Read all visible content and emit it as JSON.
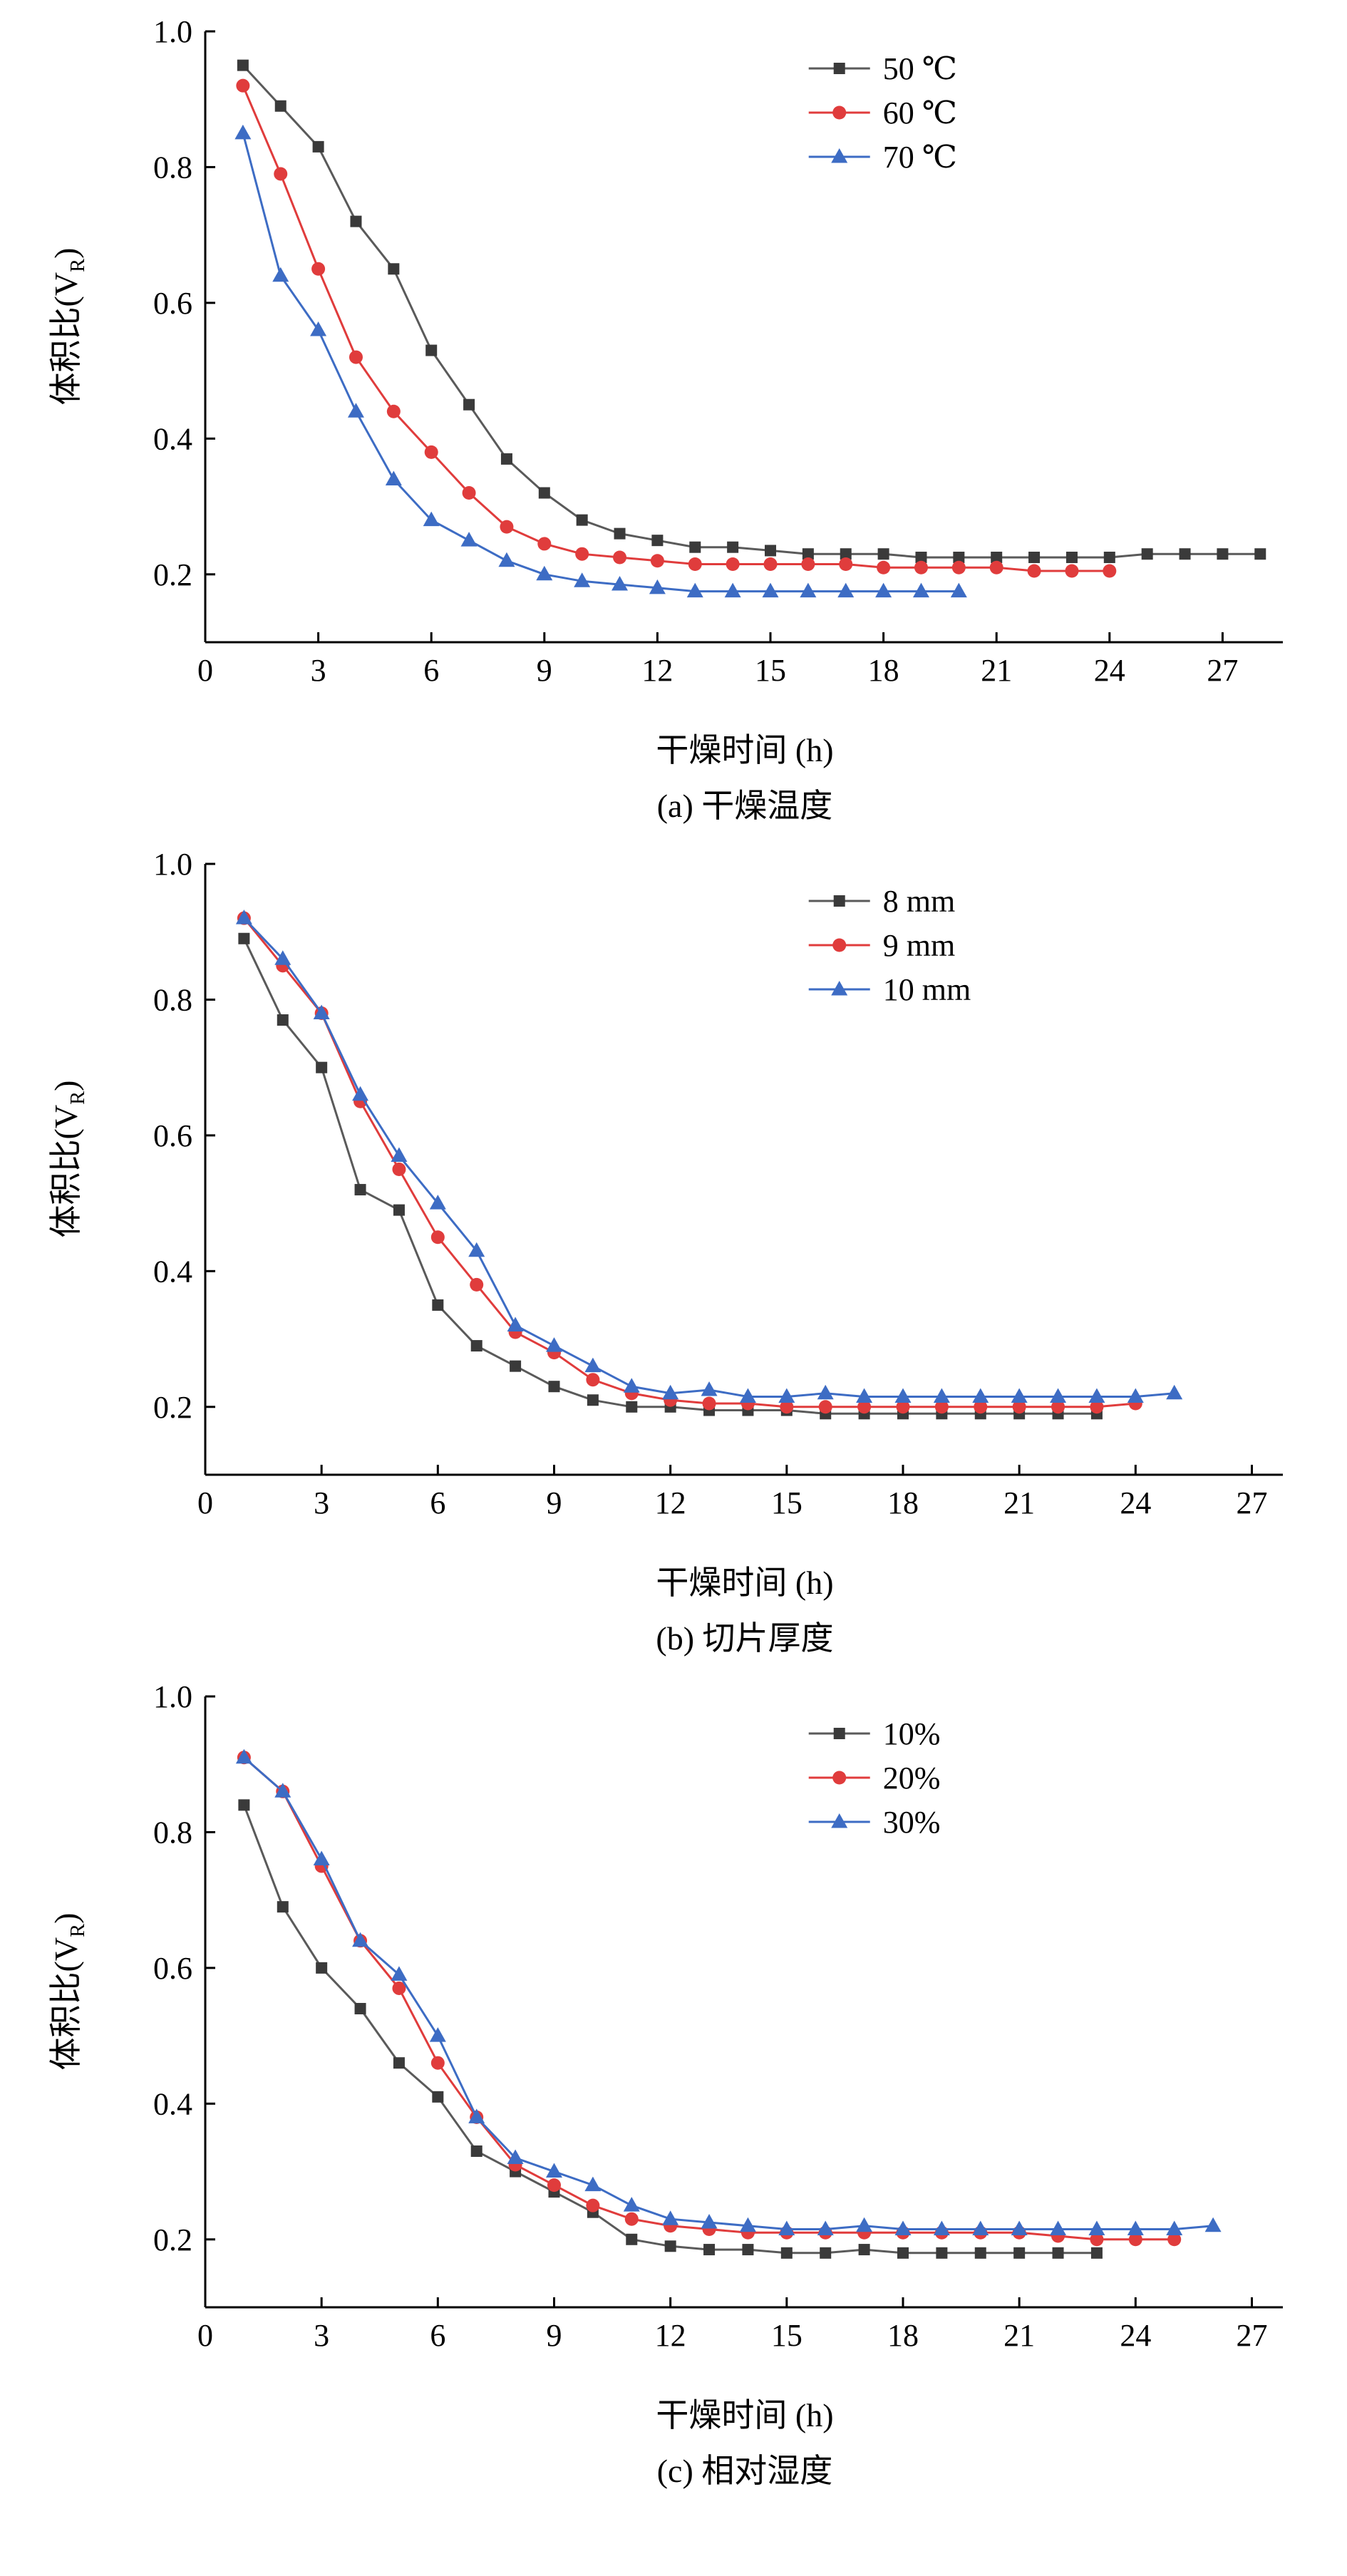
{
  "page": {
    "background": "#ffffff"
  },
  "chart_data": [
    {
      "type": "line",
      "title": "(a) 干燥温度",
      "xlabel": "干燥时间 (h)",
      "ylabel": "体积比(V_R)",
      "ylabel_prefix": "体积比(V",
      "ylabel_sub": "R",
      "ylabel_suffix": ")",
      "xlim": [
        0,
        28.6
      ],
      "ylim": [
        0.1,
        1.0
      ],
      "xticks": [
        0,
        3,
        6,
        9,
        12,
        15,
        18,
        21,
        24,
        27
      ],
      "yticks": [
        0.2,
        0.4,
        0.6,
        0.8,
        1.0
      ],
      "grid": false,
      "legend_position": "upper-right",
      "series": [
        {
          "name": "50 ℃",
          "color": "#5a5a5a",
          "marker_color": "#3a3a3a",
          "marker": "square",
          "x": [
            1,
            2,
            3,
            4,
            5,
            6,
            7,
            8,
            9,
            10,
            11,
            12,
            13,
            14,
            15,
            16,
            17,
            18,
            19,
            20,
            21,
            22,
            23,
            24,
            25,
            26,
            27,
            28
          ],
          "y": [
            0.95,
            0.89,
            0.83,
            0.72,
            0.65,
            0.53,
            0.45,
            0.37,
            0.32,
            0.28,
            0.26,
            0.25,
            0.24,
            0.24,
            0.235,
            0.23,
            0.23,
            0.23,
            0.225,
            0.225,
            0.225,
            0.225,
            0.225,
            0.225,
            0.23,
            0.23,
            0.23,
            0.23
          ]
        },
        {
          "name": "60 ℃",
          "color": "#e03c3c",
          "marker": "circle",
          "x": [
            1,
            2,
            3,
            4,
            5,
            6,
            7,
            8,
            9,
            10,
            11,
            12,
            13,
            14,
            15,
            16,
            17,
            18,
            19,
            20,
            21,
            22,
            23,
            24
          ],
          "y": [
            0.92,
            0.79,
            0.65,
            0.52,
            0.44,
            0.38,
            0.32,
            0.27,
            0.245,
            0.23,
            0.225,
            0.22,
            0.215,
            0.215,
            0.215,
            0.215,
            0.215,
            0.21,
            0.21,
            0.21,
            0.21,
            0.205,
            0.205,
            0.205
          ]
        },
        {
          "name": "70 ℃",
          "color": "#3d6cc4",
          "marker": "triangle",
          "x": [
            1,
            2,
            3,
            4,
            5,
            6,
            7,
            8,
            9,
            10,
            11,
            12,
            13,
            14,
            15,
            16,
            17,
            18,
            19,
            20
          ],
          "y": [
            0.85,
            0.64,
            0.56,
            0.44,
            0.34,
            0.28,
            0.25,
            0.22,
            0.2,
            0.19,
            0.185,
            0.18,
            0.175,
            0.175,
            0.175,
            0.175,
            0.175,
            0.175,
            0.175,
            0.175
          ]
        }
      ]
    },
    {
      "type": "line",
      "title": "(b) 切片厚度",
      "xlabel": "干燥时间 (h)",
      "ylabel": "体积比(V_R)",
      "ylabel_prefix": "体积比(V",
      "ylabel_sub": "R",
      "ylabel_suffix": ")",
      "xlim": [
        0,
        27.8
      ],
      "ylim": [
        0.1,
        1.0
      ],
      "xticks": [
        0,
        3,
        6,
        9,
        12,
        15,
        18,
        21,
        24,
        27
      ],
      "yticks": [
        0.2,
        0.4,
        0.6,
        0.8,
        1.0
      ],
      "grid": false,
      "legend_position": "upper-right",
      "series": [
        {
          "name": "8 mm",
          "color": "#5a5a5a",
          "marker_color": "#3a3a3a",
          "marker": "square",
          "x": [
            1,
            2,
            3,
            4,
            5,
            6,
            7,
            8,
            9,
            10,
            11,
            12,
            13,
            14,
            15,
            16,
            17,
            18,
            19,
            20,
            21,
            22,
            23
          ],
          "y": [
            0.89,
            0.77,
            0.7,
            0.52,
            0.49,
            0.35,
            0.29,
            0.26,
            0.23,
            0.21,
            0.2,
            0.2,
            0.195,
            0.195,
            0.195,
            0.19,
            0.19,
            0.19,
            0.19,
            0.19,
            0.19,
            0.19,
            0.19
          ]
        },
        {
          "name": "9 mm",
          "color": "#e03c3c",
          "marker": "circle",
          "x": [
            1,
            2,
            3,
            4,
            5,
            6,
            7,
            8,
            9,
            10,
            11,
            12,
            13,
            14,
            15,
            16,
            17,
            18,
            19,
            20,
            21,
            22,
            23,
            24
          ],
          "y": [
            0.92,
            0.85,
            0.78,
            0.65,
            0.55,
            0.45,
            0.38,
            0.31,
            0.28,
            0.24,
            0.22,
            0.21,
            0.205,
            0.205,
            0.2,
            0.2,
            0.2,
            0.2,
            0.2,
            0.2,
            0.2,
            0.2,
            0.2,
            0.205
          ]
        },
        {
          "name": "10 mm",
          "color": "#3d6cc4",
          "marker": "triangle",
          "x": [
            1,
            2,
            3,
            4,
            5,
            6,
            7,
            8,
            9,
            10,
            11,
            12,
            13,
            14,
            15,
            16,
            17,
            18,
            19,
            20,
            21,
            22,
            23,
            24,
            25
          ],
          "y": [
            0.92,
            0.86,
            0.78,
            0.66,
            0.57,
            0.5,
            0.43,
            0.32,
            0.29,
            0.26,
            0.23,
            0.22,
            0.225,
            0.215,
            0.215,
            0.22,
            0.215,
            0.215,
            0.215,
            0.215,
            0.215,
            0.215,
            0.215,
            0.215,
            0.22
          ]
        }
      ]
    },
    {
      "type": "line",
      "title": "(c) 相对湿度",
      "xlabel": "干燥时间 (h)",
      "ylabel": "体积比(V_R)",
      "ylabel_prefix": "体积比(V",
      "ylabel_sub": "R",
      "ylabel_suffix": ")",
      "xlim": [
        0,
        27.8
      ],
      "ylim": [
        0.1,
        1.0
      ],
      "xticks": [
        0,
        3,
        6,
        9,
        12,
        15,
        18,
        21,
        24,
        27
      ],
      "yticks": [
        0.2,
        0.4,
        0.6,
        0.8,
        1.0
      ],
      "grid": false,
      "legend_position": "upper-right",
      "series": [
        {
          "name": "10%",
          "color": "#5a5a5a",
          "marker_color": "#3a3a3a",
          "marker": "square",
          "x": [
            1,
            2,
            3,
            4,
            5,
            6,
            7,
            8,
            9,
            10,
            11,
            12,
            13,
            14,
            15,
            16,
            17,
            18,
            19,
            20,
            21,
            22,
            23
          ],
          "y": [
            0.84,
            0.69,
            0.6,
            0.54,
            0.46,
            0.41,
            0.33,
            0.3,
            0.27,
            0.24,
            0.2,
            0.19,
            0.185,
            0.185,
            0.18,
            0.18,
            0.185,
            0.18,
            0.18,
            0.18,
            0.18,
            0.18,
            0.18
          ]
        },
        {
          "name": "20%",
          "color": "#e03c3c",
          "marker": "circle",
          "x": [
            1,
            2,
            3,
            4,
            5,
            6,
            7,
            8,
            9,
            10,
            11,
            12,
            13,
            14,
            15,
            16,
            17,
            18,
            19,
            20,
            21,
            22,
            23,
            24,
            25
          ],
          "y": [
            0.91,
            0.86,
            0.75,
            0.64,
            0.57,
            0.46,
            0.38,
            0.31,
            0.28,
            0.25,
            0.23,
            0.22,
            0.215,
            0.21,
            0.21,
            0.21,
            0.21,
            0.21,
            0.21,
            0.21,
            0.21,
            0.205,
            0.2,
            0.2,
            0.2
          ]
        },
        {
          "name": "30%",
          "color": "#3d6cc4",
          "marker": "triangle",
          "x": [
            1,
            2,
            3,
            4,
            5,
            6,
            7,
            8,
            9,
            10,
            11,
            12,
            13,
            14,
            15,
            16,
            17,
            18,
            19,
            20,
            21,
            22,
            23,
            24,
            25,
            26
          ],
          "y": [
            0.91,
            0.86,
            0.76,
            0.64,
            0.59,
            0.5,
            0.38,
            0.32,
            0.3,
            0.28,
            0.25,
            0.23,
            0.225,
            0.22,
            0.215,
            0.215,
            0.22,
            0.215,
            0.215,
            0.215,
            0.215,
            0.215,
            0.215,
            0.215,
            0.215,
            0.22
          ]
        }
      ]
    }
  ]
}
